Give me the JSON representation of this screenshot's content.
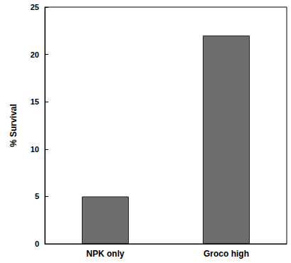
{
  "chart_data": {
    "type": "bar",
    "categories": [
      "NPK only",
      "Groco high"
    ],
    "values": [
      5,
      22
    ],
    "color": "#6e6e6e",
    "y_label": "% Survival",
    "ylim": [
      0,
      25
    ],
    "yticks": [
      0,
      5,
      10,
      15,
      20,
      25
    ],
    "grid": false
  }
}
